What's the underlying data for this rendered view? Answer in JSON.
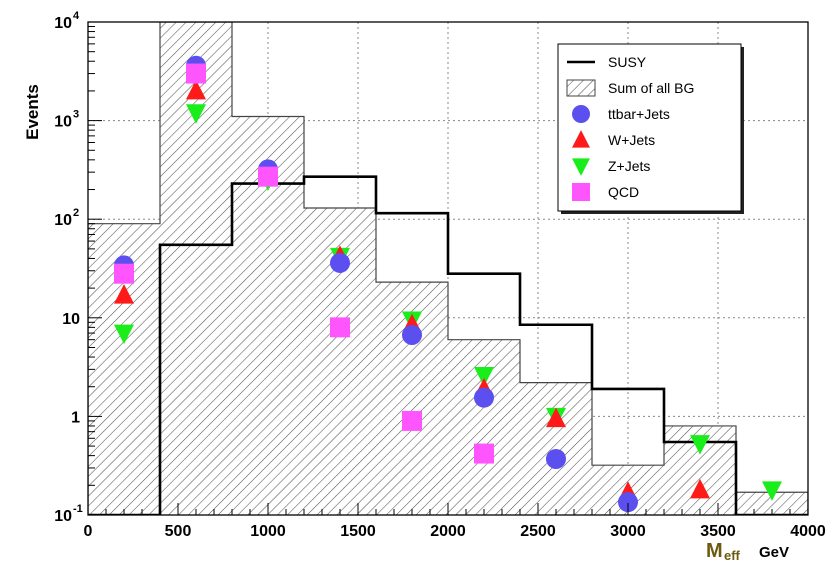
{
  "chart_data": {
    "type": "histogram",
    "ylabel": "Events",
    "xlabel_main": "M",
    "xlabel_sub": "eff",
    "xlabel_unit": "GeV",
    "x_range": [
      0,
      4000
    ],
    "y_range": [
      0.1,
      10000
    ],
    "y_scale": "log",
    "grid": true,
    "legend_position": "top-right",
    "x_ticks": [
      {
        "value": 0,
        "label": "0"
      },
      {
        "value": 500,
        "label": "500"
      },
      {
        "value": 1000,
        "label": "1000"
      },
      {
        "value": 1500,
        "label": "1500"
      },
      {
        "value": 2000,
        "label": "2000"
      },
      {
        "value": 2500,
        "label": "2500"
      },
      {
        "value": 3000,
        "label": "3000"
      },
      {
        "value": 3500,
        "label": "3500"
      },
      {
        "value": 4000,
        "label": "4000"
      }
    ],
    "y_ticks": [
      {
        "value": 0.1,
        "base": "10",
        "exp": "-1"
      },
      {
        "value": 1,
        "base": "1",
        "exp": ""
      },
      {
        "value": 10,
        "base": "10",
        "exp": ""
      },
      {
        "value": 100,
        "base": "10",
        "exp": "2"
      },
      {
        "value": 1000,
        "base": "10",
        "exp": "3"
      },
      {
        "value": 10000,
        "base": "10",
        "exp": "4"
      }
    ],
    "bin_edges": [
      0,
      400,
      800,
      1200,
      1600,
      2000,
      2400,
      2800,
      3200,
      3600,
      4000
    ],
    "histograms": [
      {
        "name": "Sum of all BG",
        "style": "hatched",
        "values": [
          90,
          10000,
          1100,
          130,
          23,
          6,
          2.2,
          0.32,
          0.8,
          0.17
        ]
      },
      {
        "name": "SUSY",
        "style": "line",
        "color": "#000000",
        "values": [
          0.1,
          55,
          230,
          270,
          115,
          28,
          8.5,
          1.9,
          0.55,
          0.1
        ]
      }
    ],
    "series": [
      {
        "name": "ttbar+Jets",
        "marker": "circle",
        "color": "#5b4ff0",
        "x": [
          200,
          600,
          1000,
          1400,
          1800,
          2200,
          2600,
          3000
        ],
        "y": [
          34,
          3600,
          320,
          36,
          6.7,
          1.55,
          0.37,
          0.135
        ]
      },
      {
        "name": "W+Jets",
        "marker": "triangle-up",
        "color": "#ff1a1a",
        "x": [
          200,
          600,
          1000,
          1400,
          1800,
          2200,
          2600,
          3000,
          3400
        ],
        "y": [
          17,
          2000,
          300,
          42,
          8.5,
          1.9,
          0.95,
          0.17,
          0.18
        ]
      },
      {
        "name": "Z+Jets",
        "marker": "triangle-down",
        "color": "#1aee1a",
        "x": [
          200,
          600,
          1000,
          1400,
          1800,
          2200,
          2600,
          3400,
          3800
        ],
        "y": [
          7,
          1200,
          250,
          42,
          9.5,
          2.6,
          1.0,
          0.53,
          0.18
        ]
      },
      {
        "name": "QCD",
        "marker": "square",
        "color": "#ff55ff",
        "x": [
          200,
          600,
          1000,
          1400,
          1800,
          2200
        ],
        "y": [
          28,
          3000,
          270,
          8,
          0.9,
          0.42
        ]
      }
    ],
    "legend": [
      {
        "label": "SUSY",
        "symbol": "line"
      },
      {
        "label": "Sum of all BG",
        "symbol": "hatched"
      },
      {
        "label": "ttbar+Jets",
        "symbol": "circle",
        "color": "#5b4ff0"
      },
      {
        "label": "W+Jets",
        "symbol": "triangle-up",
        "color": "#ff1a1a"
      },
      {
        "label": "Z+Jets",
        "symbol": "triangle-down",
        "color": "#1aee1a"
      },
      {
        "label": "QCD",
        "symbol": "square",
        "color": "#ff55ff"
      }
    ]
  }
}
